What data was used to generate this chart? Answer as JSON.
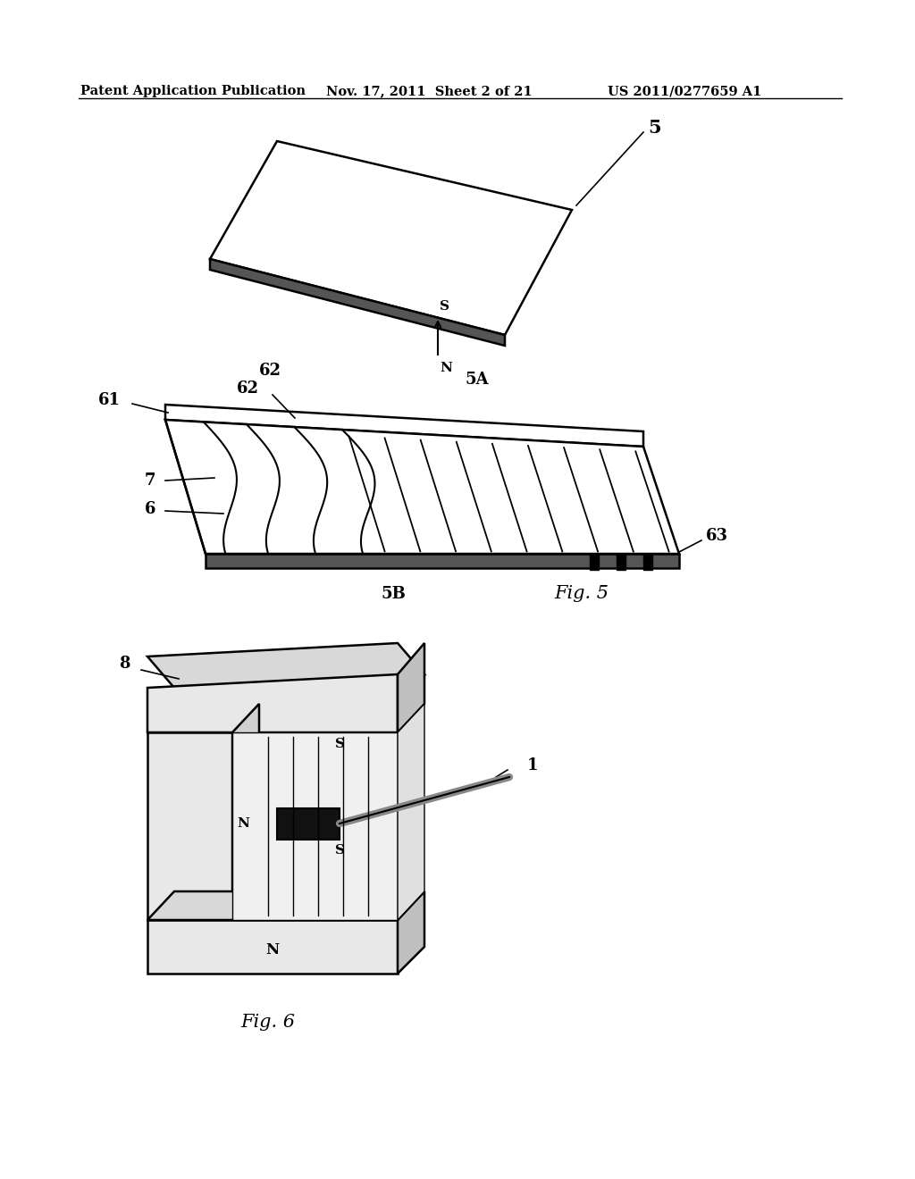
{
  "bg_color": "#ffffff",
  "header_left": "Patent Application Publication",
  "header_mid": "Nov. 17, 2011  Sheet 2 of 21",
  "header_right": "US 2011/0277659 A1",
  "fig5_label": "Fig. 5",
  "fig6_label": "Fig. 6",
  "label_5": "5",
  "label_5A": "5A",
  "label_5B": "5B",
  "label_61": "61",
  "label_62": "62",
  "label_63": "63",
  "label_6": "6",
  "label_7": "7",
  "label_8": "8",
  "label_1": "1",
  "label_S": "S",
  "label_N": "N"
}
